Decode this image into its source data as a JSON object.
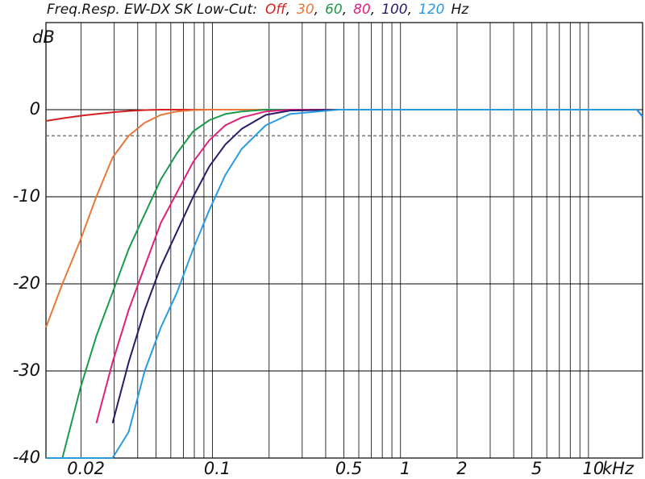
{
  "chart_data": {
    "type": "line",
    "title": "Freq.Resp. EW-DX SK  Low-Cut:",
    "title_separator": ",",
    "title_unit": "Hz",
    "y_label": "dB",
    "x_label": "kHz",
    "log_x": true,
    "grid": true,
    "reference_line": -3,
    "xlim": [
      0.013,
      19.4
    ],
    "ylim": [
      -40,
      10
    ],
    "xticks": [
      0.02,
      0.1,
      0.5,
      1,
      2,
      5,
      10
    ],
    "xgrid": [
      0.02,
      0.03,
      0.04,
      0.05,
      0.06,
      0.07,
      0.08,
      0.09,
      0.1,
      0.2,
      0.3,
      0.4,
      0.5,
      0.6,
      0.7,
      0.8,
      0.9,
      1,
      2,
      3,
      4,
      5,
      6,
      7,
      8,
      9,
      10
    ],
    "yticks": [
      0,
      -10,
      -20,
      -30,
      -40
    ],
    "x": [
      0.013,
      0.0159,
      0.0198,
      0.0241,
      0.0294,
      0.0358,
      0.0436,
      0.0531,
      0.0647,
      0.0789,
      0.0962,
      0.117,
      0.143,
      0.192,
      0.258,
      0.467,
      1.03,
      2.77,
      7.43,
      18.1,
      19.4
    ],
    "series": [
      {
        "name": "Off",
        "color": "#d42020",
        "values": [
          -1.3,
          -1.0,
          -0.7,
          -0.5,
          -0.3,
          -0.15,
          -0.05,
          0,
          0,
          0,
          0,
          0,
          0,
          0,
          0,
          0,
          0,
          0,
          0,
          0,
          -0.8
        ]
      },
      {
        "name": "30",
        "color": "#e8783a",
        "values": [
          -25,
          -20,
          -15,
          -10,
          -5.5,
          -3,
          -1.5,
          -0.6,
          -0.2,
          -0.05,
          0,
          0,
          0,
          0,
          0,
          0,
          0,
          0,
          0,
          0,
          -0.8
        ]
      },
      {
        "name": "60",
        "color": "#1a9a4a",
        "values": [
          null,
          -40,
          -32,
          -26,
          -21,
          -16,
          -12,
          -8,
          -5,
          -2.5,
          -1.2,
          -0.5,
          -0.2,
          0,
          0,
          0,
          0,
          0,
          0,
          0,
          -0.8
        ]
      },
      {
        "name": "80",
        "color": "#e0207a",
        "values": [
          null,
          null,
          null,
          -36,
          -29,
          -23,
          -18,
          -13,
          -9.5,
          -6,
          -3.5,
          -1.8,
          -0.9,
          -0.2,
          0,
          0,
          0,
          0,
          0,
          0,
          -0.8
        ]
      },
      {
        "name": "100",
        "color": "#2a1a6a",
        "values": [
          null,
          null,
          null,
          null,
          -36,
          -29,
          -23,
          -18,
          -14,
          -10,
          -6.5,
          -4,
          -2.2,
          -0.6,
          -0.1,
          0,
          0,
          0,
          0,
          0,
          -0.8
        ]
      },
      {
        "name": "120",
        "color": "#2a9ae0",
        "values": [
          -40,
          -40,
          -40,
          -40,
          -40,
          -37,
          -30,
          -25,
          -21,
          -16,
          -11.5,
          -7.5,
          -4.5,
          -1.8,
          -0.5,
          0,
          0,
          0,
          0,
          0,
          -0.8
        ]
      }
    ]
  }
}
